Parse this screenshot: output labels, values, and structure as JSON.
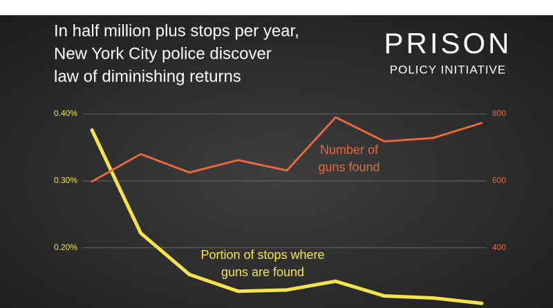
{
  "chart_data": {
    "type": "line",
    "title": [
      "In half million plus stops per year,",
      "New York City police discover",
      "law of diminishing returns"
    ],
    "logo": [
      "PRISON",
      "POLICY INITIATIVE"
    ],
    "categories": [
      null,
      null,
      null,
      null,
      null,
      null,
      null,
      null,
      null
    ],
    "series": [
      {
        "color": "#f6e44a",
        "axis": "y",
        "values": [
          0.376,
          0.222,
          0.16,
          0.135,
          0.137,
          0.15,
          0.128,
          0.125,
          0.117
        ],
        "label": [
          "Portion of stops where",
          "guns are found"
        ]
      },
      {
        "color": "#e8693c",
        "axis": "y2",
        "values": [
          598,
          680,
          625,
          662,
          631,
          790,
          718,
          728,
          773
        ],
        "label": [
          "Number of",
          "guns found"
        ]
      }
    ],
    "ylim": [
      0.11,
      0.42
    ],
    "yticks": [
      {
        "value": 0.2,
        "label": "0.20%"
      },
      {
        "value": 0.3,
        "label": "0.30%"
      },
      {
        "value": 0.4,
        "label": "0.40%"
      }
    ],
    "y2lim": [
      220,
      840
    ],
    "y2ticks": [
      400,
      600,
      800
    ],
    "grid": true
  }
}
